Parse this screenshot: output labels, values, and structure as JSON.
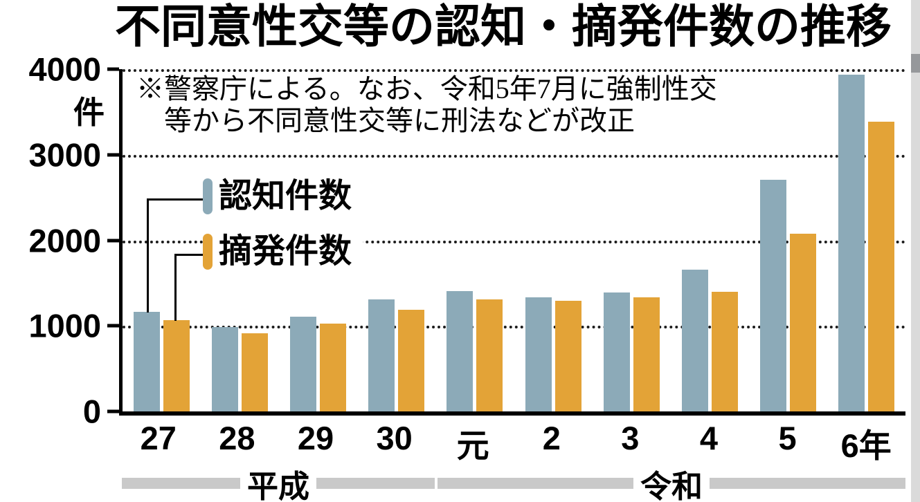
{
  "title": "不同意性交等の認知・摘発件数の推移",
  "note_line1": "※警察庁による。なお、令和5年7月に強制性交",
  "note_line2": "等から不同意性交等に刑法などが改正",
  "y_axis": {
    "unit": "件",
    "ticks": [
      "4000",
      "3000",
      "2000",
      "1000",
      "0"
    ]
  },
  "legend": [
    {
      "label": "認知件数",
      "color": "#8caab8"
    },
    {
      "label": "摘発件数",
      "color": "#e3a337"
    }
  ],
  "era_labels": [
    {
      "label": "平成"
    },
    {
      "label": "令和"
    }
  ],
  "chart_data": {
    "type": "bar",
    "title": "不同意性交等の認知・摘発件数の推移",
    "ylabel": "件",
    "ylim": [
      0,
      4000
    ],
    "y_tick_interval": 1000,
    "grid": "dotted-horizontal",
    "legend_position": "upper-left-inside",
    "categories": [
      "27",
      "28",
      "29",
      "30",
      "元",
      "2",
      "3",
      "4",
      "5",
      "6年"
    ],
    "era_groups": [
      {
        "label": "平成",
        "category_span": [
          "27",
          "30"
        ]
      },
      {
        "label": "令和",
        "category_span": [
          "元",
          "6年"
        ]
      }
    ],
    "series": [
      {
        "name": "認知件数",
        "color": "#8caab8",
        "values": [
          1167,
          989,
          1109,
          1307,
          1405,
          1332,
          1388,
          1655,
          2711,
          3936
        ]
      },
      {
        "name": "摘発件数",
        "color": "#e3a337",
        "values": [
          1069,
          913,
          1027,
          1190,
          1311,
          1297,
          1330,
          1402,
          2073,
          3382
        ]
      }
    ],
    "note": "※警察庁による。なお、令和5年7月に強制性交等から不同意性交等に刑法などが改正"
  }
}
